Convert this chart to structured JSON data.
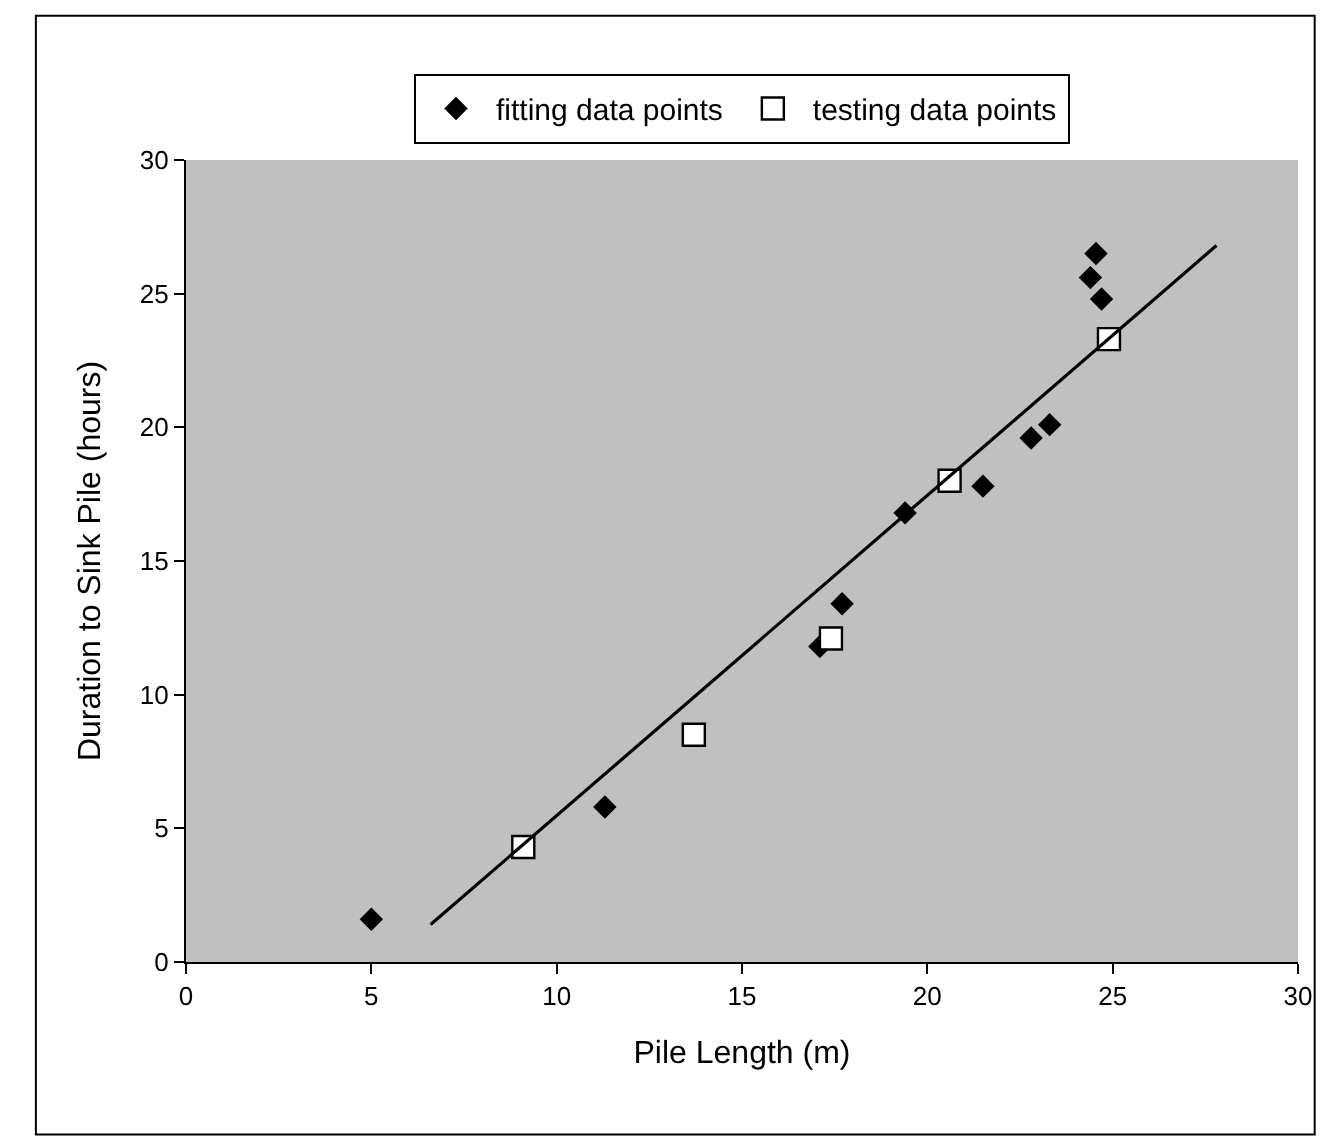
{
  "chart_data": {
    "type": "scatter",
    "xlabel": "Pile Length (m)",
    "ylabel": "Duration to Sink Pile (hours)",
    "xlim": [
      0,
      30
    ],
    "xticks": [
      0,
      5,
      10,
      15,
      20,
      25,
      30
    ],
    "ylim": [
      0,
      30
    ],
    "yticks": [
      0,
      5,
      10,
      15,
      20,
      25,
      30
    ],
    "grid": false,
    "legend": "top",
    "series": [
      {
        "name": "fitting data points",
        "color": "#000000",
        "marker": "diamond",
        "x": [
          5,
          11.3,
          17.1,
          17.7,
          19.4,
          21.5,
          22.8,
          23.3,
          24.4,
          24.55,
          24.7
        ],
        "values": [
          1.6,
          5.8,
          11.8,
          13.4,
          16.8,
          17.8,
          19.6,
          20.1,
          25.6,
          26.5,
          24.8
        ]
      },
      {
        "name": "testing data points",
        "color": "#000000",
        "marker": "square",
        "x": [
          9.1,
          13.7,
          17.4,
          20.6,
          24.9
        ],
        "values": [
          4.3,
          8.5,
          12.1,
          18.0,
          23.3
        ]
      },
      {
        "type": "line",
        "color": "#000000",
        "x": [
          6.6,
          27.8
        ],
        "values": [
          1.4,
          26.8
        ]
      }
    ]
  }
}
